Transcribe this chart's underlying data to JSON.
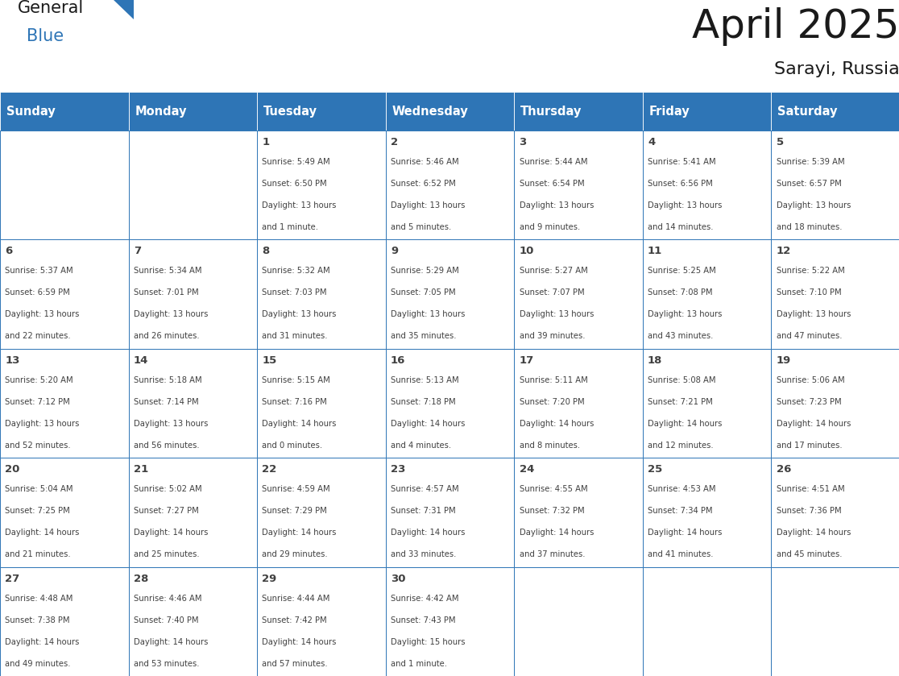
{
  "title": "April 2025",
  "subtitle": "Sarayi, Russia",
  "days_of_week": [
    "Sunday",
    "Monday",
    "Tuesday",
    "Wednesday",
    "Thursday",
    "Friday",
    "Saturday"
  ],
  "header_bg": "#2E75B6",
  "header_text": "#FFFFFF",
  "cell_bg": "#FFFFFF",
  "border_color": "#2E75B6",
  "text_color": "#404040",
  "title_color": "#1a1a1a",
  "logo_black": "#1a1a1a",
  "logo_blue": "#2E75B6",
  "weeks": [
    [
      {
        "day": "",
        "sunrise": "",
        "sunset": "",
        "daylight": ""
      },
      {
        "day": "",
        "sunrise": "",
        "sunset": "",
        "daylight": ""
      },
      {
        "day": "1",
        "sunrise": "5:49 AM",
        "sunset": "6:50 PM",
        "daylight": "13 hours\nand 1 minute."
      },
      {
        "day": "2",
        "sunrise": "5:46 AM",
        "sunset": "6:52 PM",
        "daylight": "13 hours\nand 5 minutes."
      },
      {
        "day": "3",
        "sunrise": "5:44 AM",
        "sunset": "6:54 PM",
        "daylight": "13 hours\nand 9 minutes."
      },
      {
        "day": "4",
        "sunrise": "5:41 AM",
        "sunset": "6:56 PM",
        "daylight": "13 hours\nand 14 minutes."
      },
      {
        "day": "5",
        "sunrise": "5:39 AM",
        "sunset": "6:57 PM",
        "daylight": "13 hours\nand 18 minutes."
      }
    ],
    [
      {
        "day": "6",
        "sunrise": "5:37 AM",
        "sunset": "6:59 PM",
        "daylight": "13 hours\nand 22 minutes."
      },
      {
        "day": "7",
        "sunrise": "5:34 AM",
        "sunset": "7:01 PM",
        "daylight": "13 hours\nand 26 minutes."
      },
      {
        "day": "8",
        "sunrise": "5:32 AM",
        "sunset": "7:03 PM",
        "daylight": "13 hours\nand 31 minutes."
      },
      {
        "day": "9",
        "sunrise": "5:29 AM",
        "sunset": "7:05 PM",
        "daylight": "13 hours\nand 35 minutes."
      },
      {
        "day": "10",
        "sunrise": "5:27 AM",
        "sunset": "7:07 PM",
        "daylight": "13 hours\nand 39 minutes."
      },
      {
        "day": "11",
        "sunrise": "5:25 AM",
        "sunset": "7:08 PM",
        "daylight": "13 hours\nand 43 minutes."
      },
      {
        "day": "12",
        "sunrise": "5:22 AM",
        "sunset": "7:10 PM",
        "daylight": "13 hours\nand 47 minutes."
      }
    ],
    [
      {
        "day": "13",
        "sunrise": "5:20 AM",
        "sunset": "7:12 PM",
        "daylight": "13 hours\nand 52 minutes."
      },
      {
        "day": "14",
        "sunrise": "5:18 AM",
        "sunset": "7:14 PM",
        "daylight": "13 hours\nand 56 minutes."
      },
      {
        "day": "15",
        "sunrise": "5:15 AM",
        "sunset": "7:16 PM",
        "daylight": "14 hours\nand 0 minutes."
      },
      {
        "day": "16",
        "sunrise": "5:13 AM",
        "sunset": "7:18 PM",
        "daylight": "14 hours\nand 4 minutes."
      },
      {
        "day": "17",
        "sunrise": "5:11 AM",
        "sunset": "7:20 PM",
        "daylight": "14 hours\nand 8 minutes."
      },
      {
        "day": "18",
        "sunrise": "5:08 AM",
        "sunset": "7:21 PM",
        "daylight": "14 hours\nand 12 minutes."
      },
      {
        "day": "19",
        "sunrise": "5:06 AM",
        "sunset": "7:23 PM",
        "daylight": "14 hours\nand 17 minutes."
      }
    ],
    [
      {
        "day": "20",
        "sunrise": "5:04 AM",
        "sunset": "7:25 PM",
        "daylight": "14 hours\nand 21 minutes."
      },
      {
        "day": "21",
        "sunrise": "5:02 AM",
        "sunset": "7:27 PM",
        "daylight": "14 hours\nand 25 minutes."
      },
      {
        "day": "22",
        "sunrise": "4:59 AM",
        "sunset": "7:29 PM",
        "daylight": "14 hours\nand 29 minutes."
      },
      {
        "day": "23",
        "sunrise": "4:57 AM",
        "sunset": "7:31 PM",
        "daylight": "14 hours\nand 33 minutes."
      },
      {
        "day": "24",
        "sunrise": "4:55 AM",
        "sunset": "7:32 PM",
        "daylight": "14 hours\nand 37 minutes."
      },
      {
        "day": "25",
        "sunrise": "4:53 AM",
        "sunset": "7:34 PM",
        "daylight": "14 hours\nand 41 minutes."
      },
      {
        "day": "26",
        "sunrise": "4:51 AM",
        "sunset": "7:36 PM",
        "daylight": "14 hours\nand 45 minutes."
      }
    ],
    [
      {
        "day": "27",
        "sunrise": "4:48 AM",
        "sunset": "7:38 PM",
        "daylight": "14 hours\nand 49 minutes."
      },
      {
        "day": "28",
        "sunrise": "4:46 AM",
        "sunset": "7:40 PM",
        "daylight": "14 hours\nand 53 minutes."
      },
      {
        "day": "29",
        "sunrise": "4:44 AM",
        "sunset": "7:42 PM",
        "daylight": "14 hours\nand 57 minutes."
      },
      {
        "day": "30",
        "sunrise": "4:42 AM",
        "sunset": "7:43 PM",
        "daylight": "15 hours\nand 1 minute."
      },
      {
        "day": "",
        "sunrise": "",
        "sunset": "",
        "daylight": ""
      },
      {
        "day": "",
        "sunrise": "",
        "sunset": "",
        "daylight": ""
      },
      {
        "day": "",
        "sunrise": "",
        "sunset": "",
        "daylight": ""
      }
    ]
  ]
}
